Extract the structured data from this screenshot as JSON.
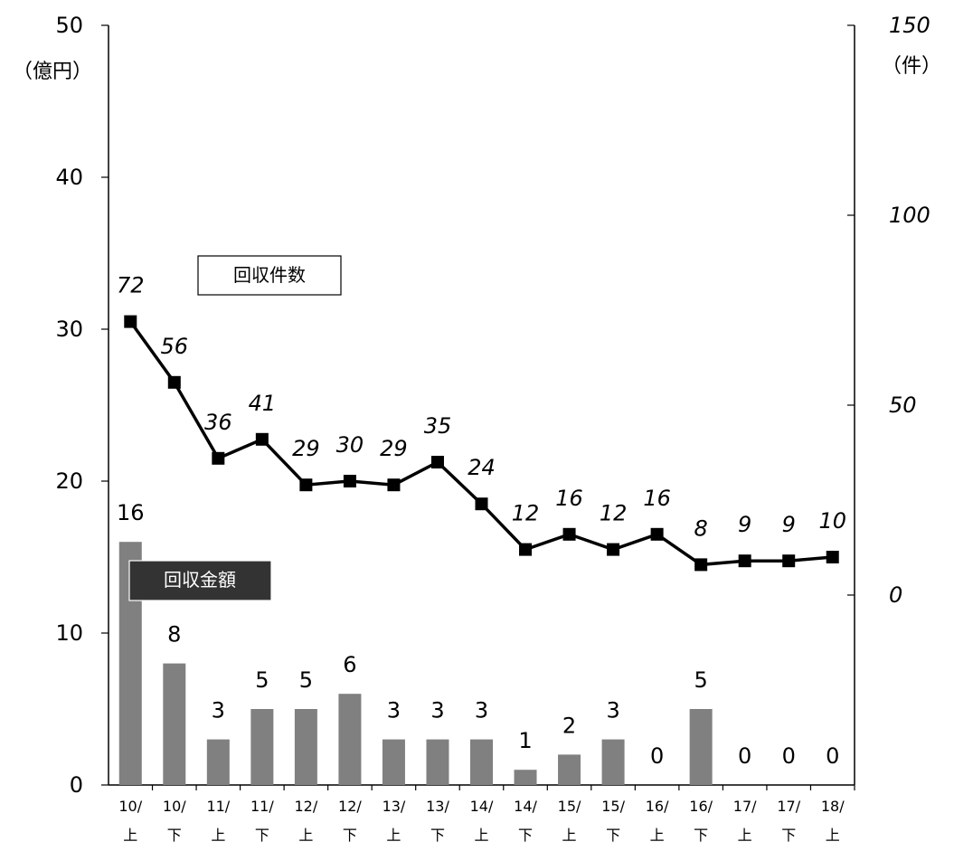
{
  "chart_data": {
    "type": "bar+line",
    "categories_line1": [
      "10/",
      "10/",
      "11/",
      "11/",
      "12/",
      "12/",
      "13/",
      "13/",
      "14/",
      "14/",
      "15/",
      "15/",
      "16/",
      "16/",
      "17/",
      "17/",
      "18/"
    ],
    "categories_line2": [
      "上",
      "下",
      "上",
      "下",
      "上",
      "下",
      "上",
      "下",
      "上",
      "下",
      "上",
      "下",
      "上",
      "下",
      "上",
      "下",
      "上"
    ],
    "series": [
      {
        "name": "回収金額",
        "type": "bar",
        "axis": "left",
        "color": "#808080",
        "values": [
          16,
          8,
          3,
          5,
          5,
          6,
          3,
          3,
          3,
          1,
          2,
          3,
          0,
          5,
          0,
          0,
          0
        ],
        "labels": [
          "16",
          "8",
          "3",
          "5",
          "5",
          "6",
          "3",
          "3",
          "3",
          "1",
          "2",
          "3",
          "0",
          "5",
          "0",
          "0",
          "0"
        ]
      },
      {
        "name": "回収件数",
        "type": "line",
        "axis": "right",
        "color": "#000000",
        "values": [
          72,
          56,
          36,
          41,
          29,
          30,
          29,
          35,
          24,
          12,
          16,
          12,
          16,
          8,
          9,
          9,
          10
        ],
        "labels": [
          "72",
          "56",
          "36",
          "41",
          "29",
          "30",
          "29",
          "35",
          "24",
          "12",
          "16",
          "12",
          "16",
          "8",
          "9",
          "9",
          "10"
        ]
      }
    ],
    "left_axis": {
      "unit": "（億円）",
      "ylim": [
        0,
        50
      ],
      "ticks": [
        "0",
        "10",
        "20",
        "30",
        "40",
        "50"
      ]
    },
    "right_axis": {
      "unit": "（件）",
      "ylim": [
        -50,
        150
      ],
      "ticks": [
        "0",
        "50",
        "100",
        "150"
      ]
    },
    "legend_line": "回収件数",
    "legend_bar": "回収金額",
    "grid": false
  }
}
